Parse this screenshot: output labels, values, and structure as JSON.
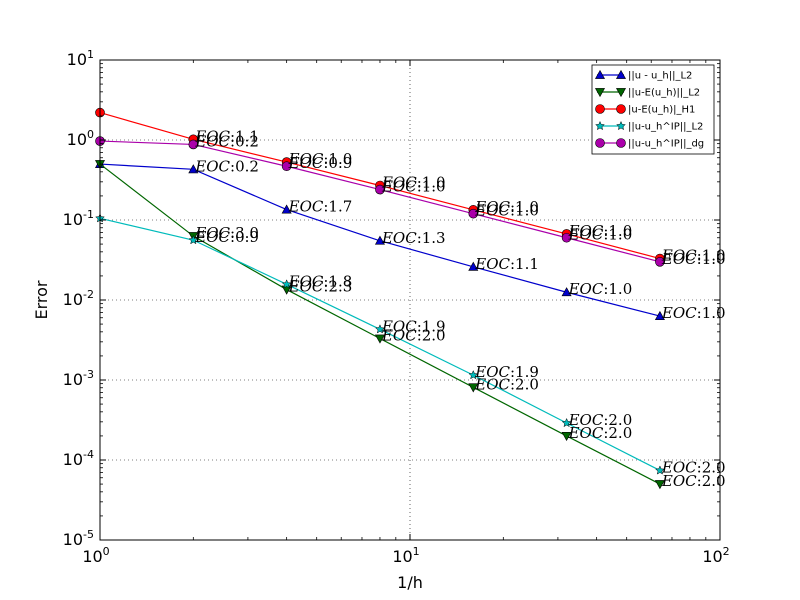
{
  "chart_data": {
    "type": "line",
    "title": "",
    "xlabel": "1/h",
    "ylabel": "Error",
    "xscale": "log",
    "yscale": "log",
    "xlim": [
      1,
      100
    ],
    "ylim": [
      1e-05,
      10
    ],
    "grid": true,
    "legend_position": "top-right",
    "x_ticks": [
      {
        "base": "10",
        "exp": "0",
        "value": 1
      },
      {
        "base": "10",
        "exp": "1",
        "value": 10
      },
      {
        "base": "10",
        "exp": "2",
        "value": 100
      }
    ],
    "y_ticks": [
      {
        "base": "10",
        "exp": "1",
        "value": 10
      },
      {
        "base": "10",
        "exp": "0",
        "value": 1
      },
      {
        "base": "10",
        "exp": "-1",
        "value": 0.1
      },
      {
        "base": "10",
        "exp": "-2",
        "value": 0.01
      },
      {
        "base": "10",
        "exp": "-3",
        "value": 0.001
      },
      {
        "base": "10",
        "exp": "-4",
        "value": 0.0001
      },
      {
        "base": "10",
        "exp": "-5",
        "value": 1e-05
      }
    ],
    "x": [
      1,
      2,
      4,
      8,
      16,
      32,
      64
    ],
    "series": [
      {
        "name": "||u - u_h||_L2",
        "color": "#0000cc",
        "marker": "triangle-up",
        "values": [
          0.5,
          0.43,
          0.135,
          0.055,
          0.026,
          0.0125,
          0.0063
        ],
        "eoc": [
          "",
          "0.2",
          "1.7",
          "1.3",
          "1.1",
          "1.0",
          "1.0"
        ]
      },
      {
        "name": "||u-E(u_h)||_L2",
        "color": "#006600",
        "marker": "triangle-down",
        "values": [
          0.5,
          0.063,
          0.0135,
          0.0033,
          0.00081,
          0.0002,
          5e-05
        ],
        "eoc": [
          "",
          "3.0",
          "2.3",
          "2.0",
          "2.0",
          "2.0",
          "2.0"
        ]
      },
      {
        "name": "|u-E(u_h)|_H1",
        "color": "#ff0000",
        "marker": "circle",
        "values": [
          2.2,
          1.02,
          0.53,
          0.27,
          0.134,
          0.067,
          0.033
        ],
        "eoc": [
          "",
          "1.1",
          "1.0",
          "1.0",
          "1.0",
          "1.0",
          "1.0"
        ]
      },
      {
        "name": "||u-u_h^IP||_L2",
        "color": "#00bbbb",
        "marker": "star",
        "values": [
          0.105,
          0.056,
          0.0157,
          0.0043,
          0.00115,
          0.00029,
          7.4e-05
        ],
        "eoc": [
          "",
          "0.9",
          "1.8",
          "1.9",
          "1.9",
          "2.0",
          "2.0"
        ]
      },
      {
        "name": "||u-u_h^IP||_dg",
        "color": "#aa00aa",
        "marker": "circle",
        "values": [
          0.97,
          0.88,
          0.47,
          0.24,
          0.12,
          0.06,
          0.03
        ],
        "eoc": [
          "",
          "0.2",
          "0.9",
          "1.0",
          "1.0",
          "1.0",
          "1.0"
        ]
      }
    ]
  },
  "eoc_prefix": "EOC"
}
